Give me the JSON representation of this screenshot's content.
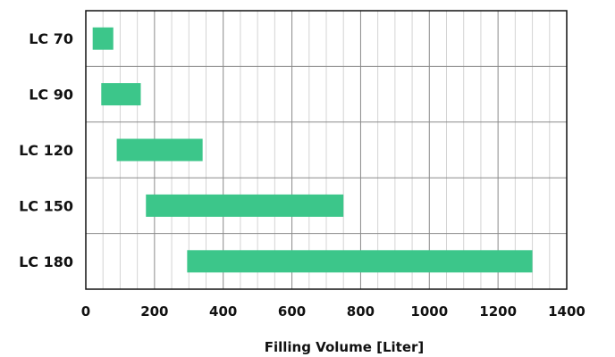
{
  "chart_data": {
    "type": "bar",
    "orientation": "horizontal",
    "style": "floating-range",
    "categories": [
      "LC 70",
      "LC 90",
      "LC 120",
      "LC 150",
      "LC 180"
    ],
    "series": [
      {
        "ranges": [
          [
            20,
            80
          ],
          [
            45,
            160
          ],
          [
            90,
            340
          ],
          [
            175,
            750
          ],
          [
            295,
            1300
          ]
        ]
      }
    ],
    "xlabel": "Filling Volume [Liter]",
    "ylabel": "",
    "xlim": [
      0,
      1400
    ],
    "xticks": [
      0,
      200,
      400,
      600,
      800,
      1000,
      1200,
      1400
    ],
    "x_tick_labels": [
      "0",
      "200",
      "400",
      "600",
      "800",
      "1000",
      "1200",
      "1400"
    ],
    "grid": {
      "major_step": 200,
      "minor_step": 50
    },
    "bar_color": "#3cc68a"
  }
}
